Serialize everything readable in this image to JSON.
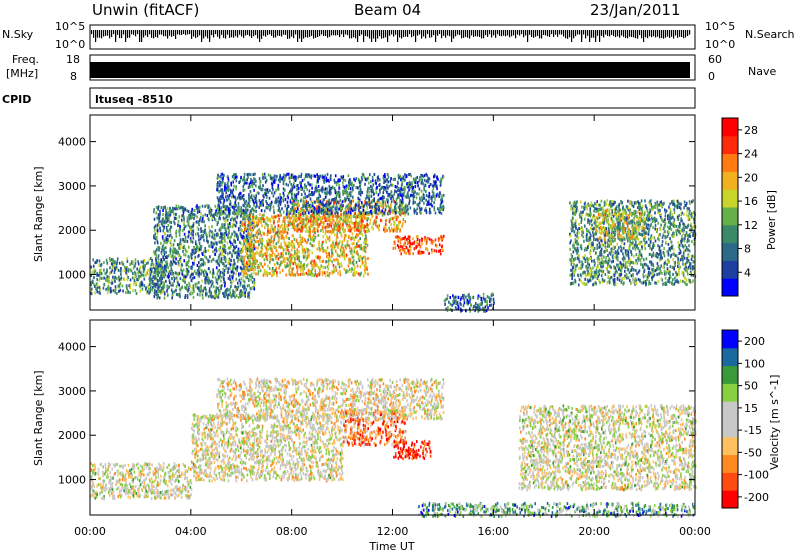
{
  "header": {
    "station": "Unwin (fitACF)",
    "beam": "Beam 04",
    "date": "23/Jan/2011"
  },
  "strip_labels": {
    "nsky": "N.Sky",
    "nsky_top": "10^5",
    "nsky_bottom": "10^0",
    "nsearch": "N.Search",
    "nsearch_top": "10^5",
    "nsearch_bottom": "10^0",
    "freq_line1": "Freq.",
    "freq_line2": "[MHz]",
    "freq_top": "18",
    "freq_bottom": "8",
    "nave": "Nave",
    "nave_top": "60",
    "nave_bottom": "0",
    "cpid": "CPID",
    "program": "ltuseq -8510"
  },
  "chart_data": [
    {
      "type": "heatmap",
      "title": "",
      "xlabel": "Time UT",
      "ylabel": "Slant Range [km]",
      "x_ticks": [
        "00:00",
        "04:00",
        "08:00",
        "12:00",
        "16:00",
        "20:00",
        "00:00"
      ],
      "xlim_hours": [
        0,
        24
      ],
      "ylim": [
        200,
        4600
      ],
      "y_ticks": [
        1000,
        2000,
        3000,
        4000
      ],
      "colorbar": {
        "label": "Power [dB]",
        "ticks": [
          4,
          8,
          12,
          16,
          20,
          24,
          28
        ],
        "range": [
          0,
          30
        ],
        "colors": [
          "#0000ff",
          "#1e3fa0",
          "#2a6a88",
          "#3a8a6a",
          "#66b04a",
          "#c8d42a",
          "#f0b020",
          "#ff7a10",
          "#ff2a0a",
          "#ff0000"
        ]
      },
      "clusters": [
        {
          "t0": 0.0,
          "t1": 3.0,
          "r0": 600,
          "r1": 1400,
          "level": 0.35
        },
        {
          "t0": 2.5,
          "t1": 6.5,
          "r0": 500,
          "r1": 2600,
          "level": 0.3
        },
        {
          "t0": 6.0,
          "t1": 11.0,
          "r0": 1000,
          "r1": 2400,
          "level": 0.6
        },
        {
          "t0": 8.0,
          "t1": 12.5,
          "r0": 2000,
          "r1": 2700,
          "level": 0.65
        },
        {
          "t0": 12.0,
          "t1": 14.0,
          "r0": 1500,
          "r1": 1900,
          "level": 0.85
        },
        {
          "t0": 5.0,
          "t1": 14.0,
          "r0": 2400,
          "r1": 3300,
          "level": 0.25
        },
        {
          "t0": 14.0,
          "t1": 16.0,
          "r0": 200,
          "r1": 600,
          "level": 0.25
        },
        {
          "t0": 19.0,
          "t1": 24.0,
          "r0": 800,
          "r1": 2700,
          "level": 0.35
        },
        {
          "t0": 20.0,
          "t1": 22.0,
          "r0": 1800,
          "r1": 2500,
          "level": 0.55
        }
      ]
    },
    {
      "type": "heatmap",
      "title": "",
      "xlabel": "Time UT",
      "ylabel": "Slant Range [km]",
      "x_ticks": [
        "00:00",
        "04:00",
        "08:00",
        "12:00",
        "16:00",
        "20:00",
        "00:00"
      ],
      "xlim_hours": [
        0,
        24
      ],
      "ylim": [
        200,
        4600
      ],
      "y_ticks": [
        1000,
        2000,
        3000,
        4000
      ],
      "colorbar": {
        "label": "Velocity [m s^-1]",
        "ticks": [
          "200",
          "100",
          "50",
          "15",
          "-15",
          "-50",
          "-100",
          "-200"
        ],
        "range": [
          -250,
          250
        ],
        "colors": [
          "#ff0000",
          "#ff4a10",
          "#ff8a20",
          "#ffc060",
          "#c8c8c8",
          "#c8c8c8",
          "#88d040",
          "#3a9a3a",
          "#1a6aa0",
          "#0000ff"
        ]
      },
      "clusters": [
        {
          "t0": 0.0,
          "t1": 4.0,
          "r0": 600,
          "r1": 1400,
          "level": 0.5
        },
        {
          "t0": 4.0,
          "t1": 10.0,
          "r0": 1000,
          "r1": 2500,
          "level": 0.48
        },
        {
          "t0": 10.0,
          "t1": 12.5,
          "r0": 1800,
          "r1": 2600,
          "level": 0.25
        },
        {
          "t0": 12.0,
          "t1": 13.5,
          "r0": 1500,
          "r1": 1900,
          "level": 0.05
        },
        {
          "t0": 5.0,
          "t1": 14.0,
          "r0": 2400,
          "r1": 3300,
          "level": 0.45
        },
        {
          "t0": 13.0,
          "t1": 24.0,
          "r0": 200,
          "r1": 500,
          "level": 0.7
        },
        {
          "t0": 17.0,
          "t1": 24.0,
          "r0": 800,
          "r1": 2700,
          "level": 0.5
        }
      ]
    }
  ]
}
